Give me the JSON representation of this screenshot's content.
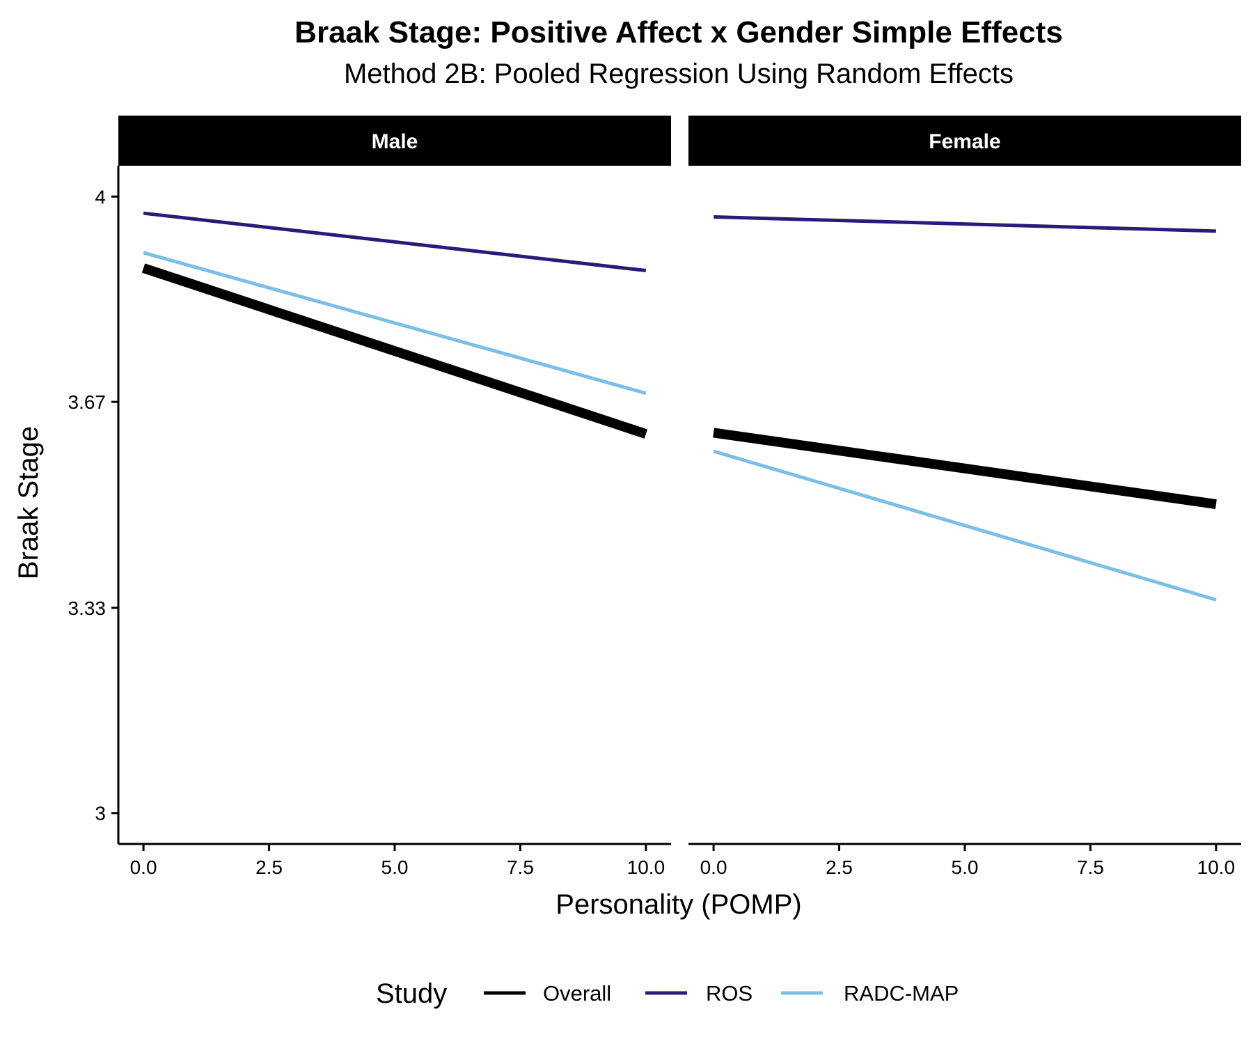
{
  "chart_data": {
    "type": "line",
    "title": "Braak Stage: Positive Affect x Gender Simple Effects",
    "subtitle": "Method 2B: Pooled Regression Using Random Effects",
    "xlabel": "Personality (POMP)",
    "ylabel": "Braak Stage",
    "xlim": [
      -0.5,
      10.5
    ],
    "ylim": [
      2.95,
      4.05
    ],
    "x_ticks": [
      0,
      2.5,
      5,
      7.5,
      10
    ],
    "x_tick_labels": [
      "0.0",
      "2.5",
      "5.0",
      "7.5",
      "10.0"
    ],
    "y_ticks": [
      3,
      3.333,
      3.667,
      4
    ],
    "y_tick_labels": [
      "3",
      "3.33",
      "3.67",
      "4"
    ],
    "grid": false,
    "legend": {
      "title": "Study",
      "position": "bottom",
      "entries": [
        "Overall",
        "ROS",
        "RADC-MAP"
      ]
    },
    "colors": {
      "Overall": "#000000",
      "ROS": "#2a1a7a",
      "RADC-MAP": "#7bbfe8"
    },
    "panels": [
      {
        "label": "Male",
        "series": [
          {
            "name": "Overall",
            "x": [
              0,
              10
            ],
            "y": [
              3.884,
              3.615
            ]
          },
          {
            "name": "ROS",
            "x": [
              0,
              10
            ],
            "y": [
              3.973,
              3.88
            ]
          },
          {
            "name": "RADC-MAP",
            "x": [
              0,
              10
            ],
            "y": [
              3.909,
              3.681
            ]
          }
        ]
      },
      {
        "label": "Female",
        "series": [
          {
            "name": "Overall",
            "x": [
              0,
              10
            ],
            "y": [
              3.617,
              3.501
            ]
          },
          {
            "name": "ROS",
            "x": [
              0,
              10
            ],
            "y": [
              3.967,
              3.944
            ]
          },
          {
            "name": "RADC-MAP",
            "x": [
              0,
              10
            ],
            "y": [
              3.587,
              3.346
            ]
          }
        ]
      }
    ]
  }
}
